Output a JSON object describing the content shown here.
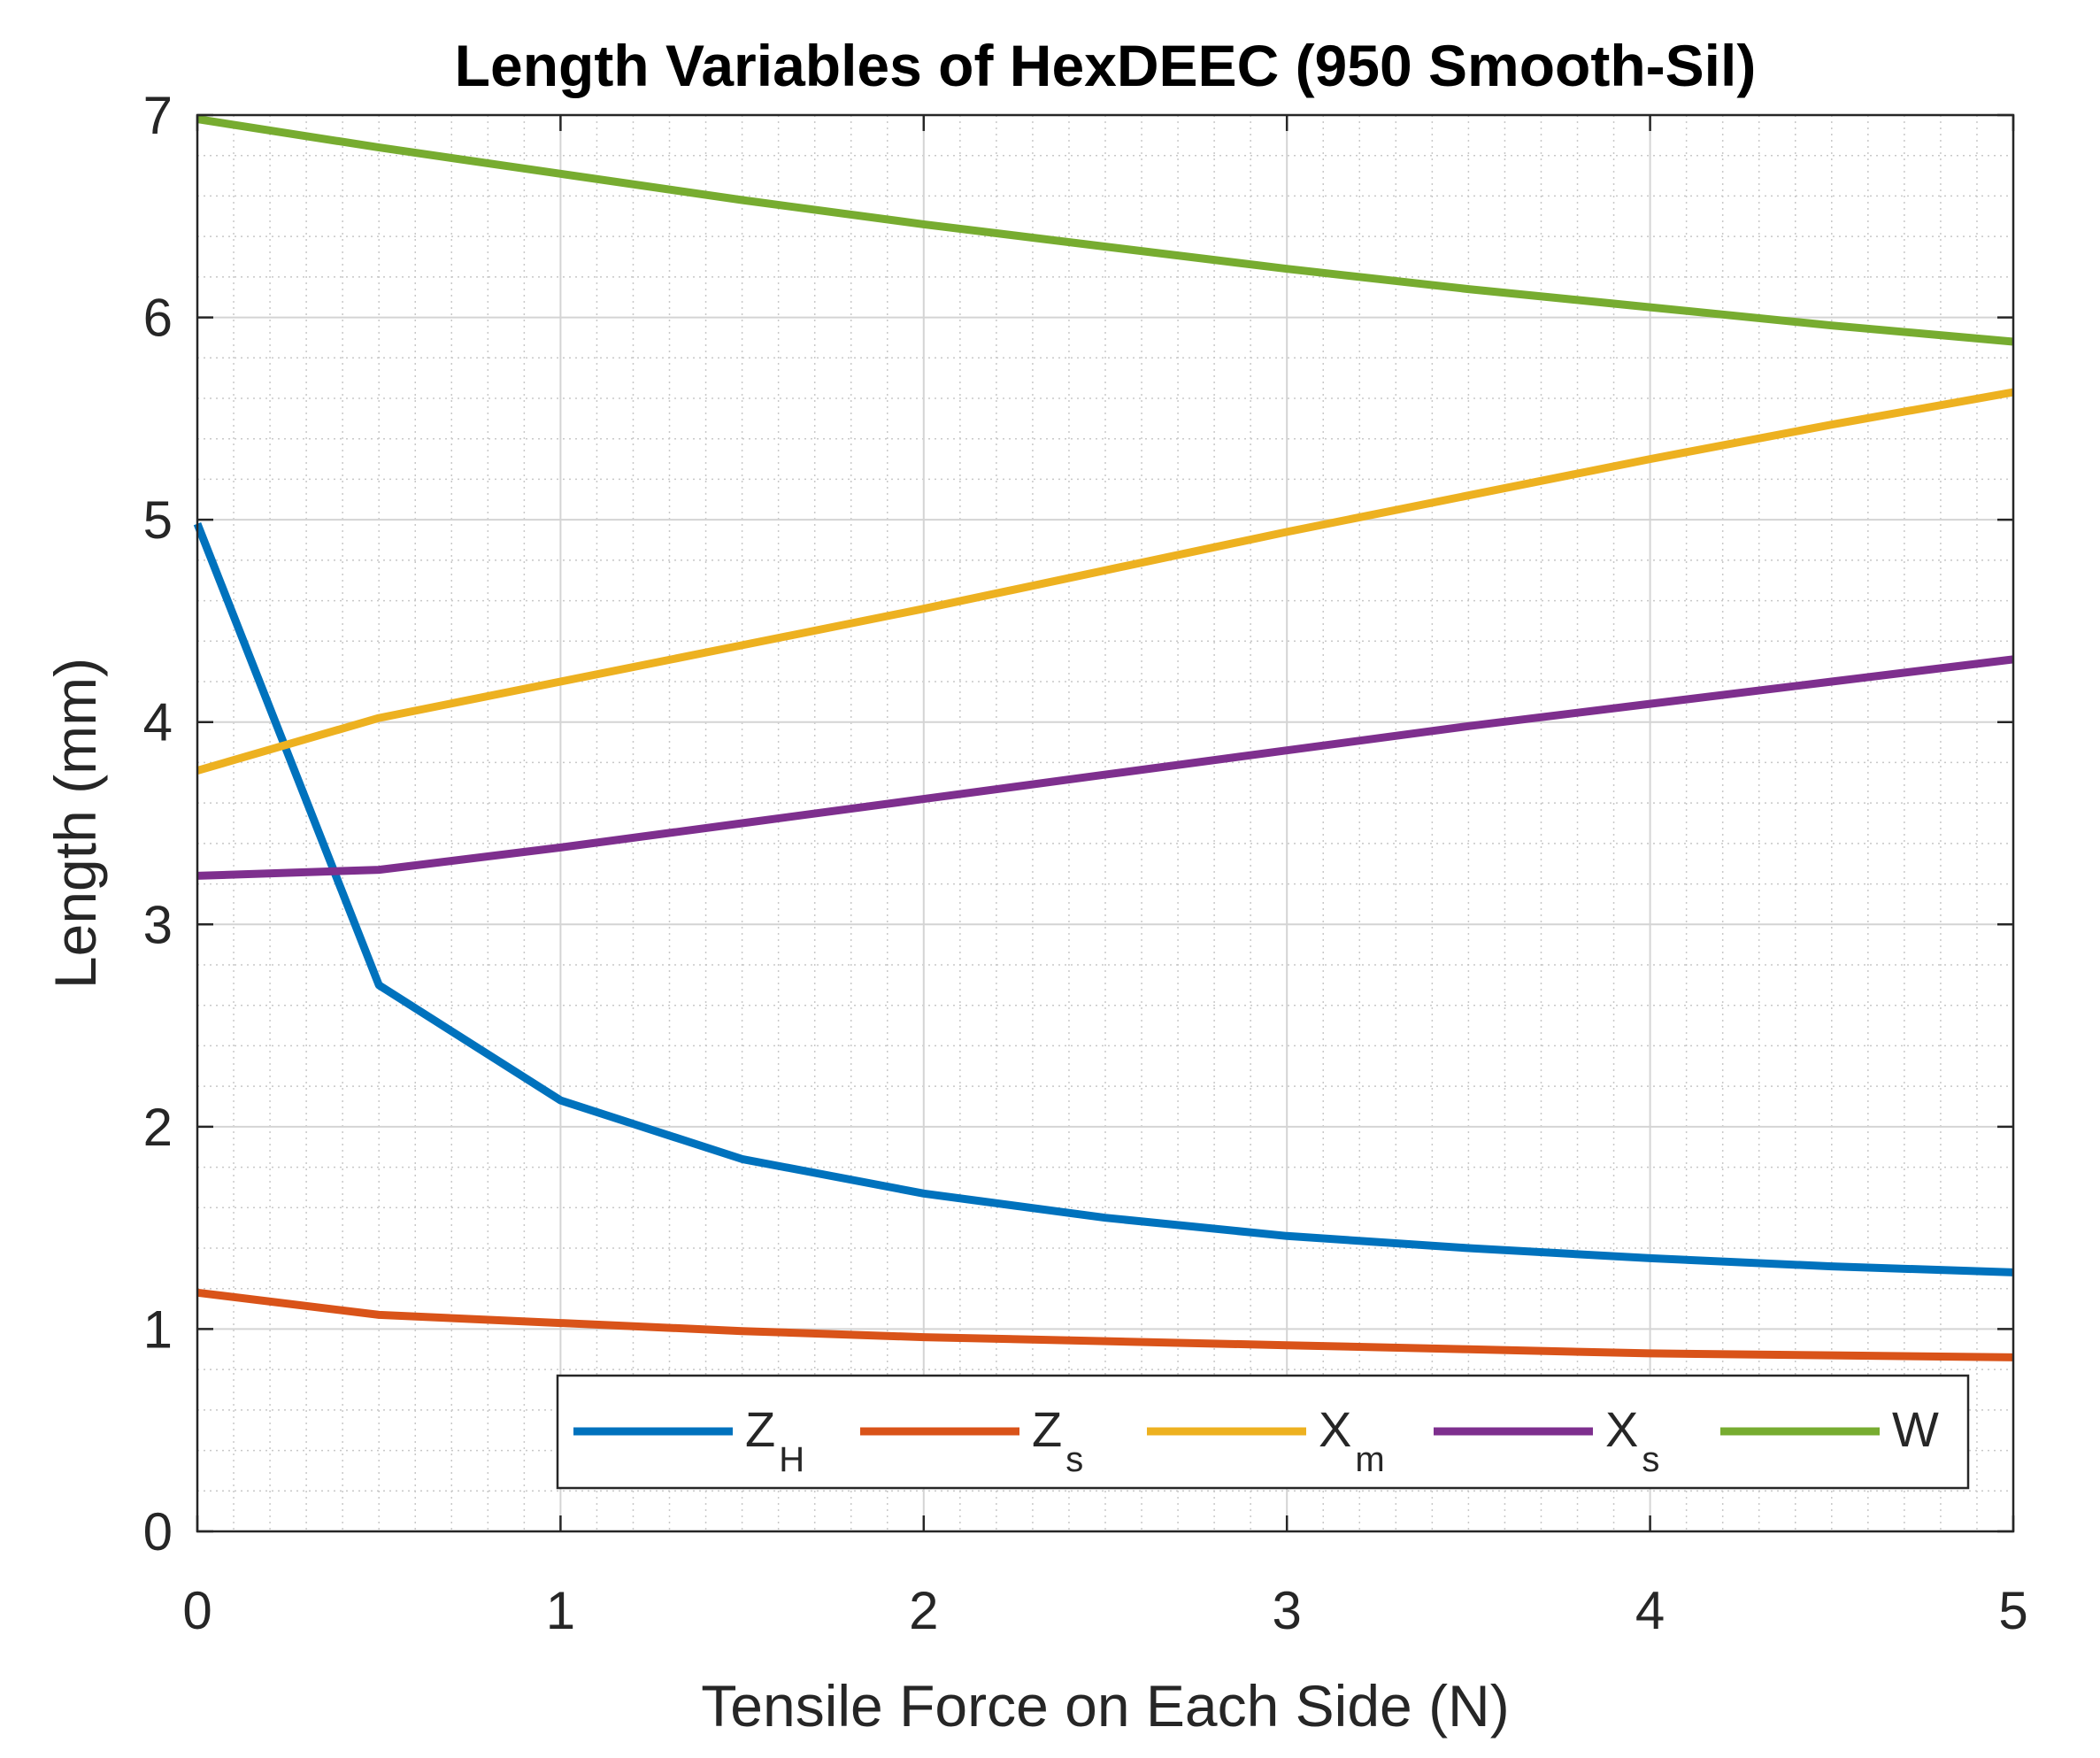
{
  "chart_data": {
    "type": "line",
    "title": "Length Variables of HexDEEC (950 Smooth-Sil)",
    "xlabel": "Tensile Force on Each Side (N)",
    "ylabel": "Length (mm)",
    "xlim": [
      0,
      5
    ],
    "ylim": [
      0,
      7
    ],
    "xticks": [
      "0",
      "1",
      "2",
      "3",
      "4",
      "5"
    ],
    "yticks": [
      "0",
      "1",
      "2",
      "3",
      "4",
      "5",
      "6",
      "7"
    ],
    "grid": "major and minor",
    "legend_position": "bottom-right",
    "x": [
      0,
      0.5,
      1,
      1.5,
      2,
      2.5,
      3,
      3.5,
      4,
      4.5,
      5
    ],
    "series": [
      {
        "name": "Z",
        "subscript": "H",
        "color": "#0072BD",
        "values": [
          4.98,
          2.7,
          2.13,
          1.84,
          1.67,
          1.55,
          1.46,
          1.4,
          1.35,
          1.31,
          1.28
        ]
      },
      {
        "name": "Z",
        "subscript": "s",
        "color": "#D95319",
        "values": [
          1.18,
          1.07,
          1.03,
          0.99,
          0.96,
          0.94,
          0.92,
          0.9,
          0.88,
          0.87,
          0.86
        ]
      },
      {
        "name": "X",
        "subscript": "m",
        "color": "#EDB120",
        "values": [
          3.76,
          4.02,
          4.2,
          4.38,
          4.56,
          4.75,
          4.94,
          5.12,
          5.3,
          5.47,
          5.63
        ]
      },
      {
        "name": "X",
        "subscript": "s",
        "color": "#7E2F8E",
        "values": [
          3.24,
          3.27,
          3.38,
          3.5,
          3.62,
          3.74,
          3.86,
          3.98,
          4.09,
          4.2,
          4.31
        ]
      },
      {
        "name": "W",
        "subscript": "",
        "color": "#77AC30",
        "values": [
          6.98,
          6.84,
          6.71,
          6.58,
          6.46,
          6.35,
          6.24,
          6.14,
          6.05,
          5.96,
          5.88
        ]
      }
    ]
  }
}
